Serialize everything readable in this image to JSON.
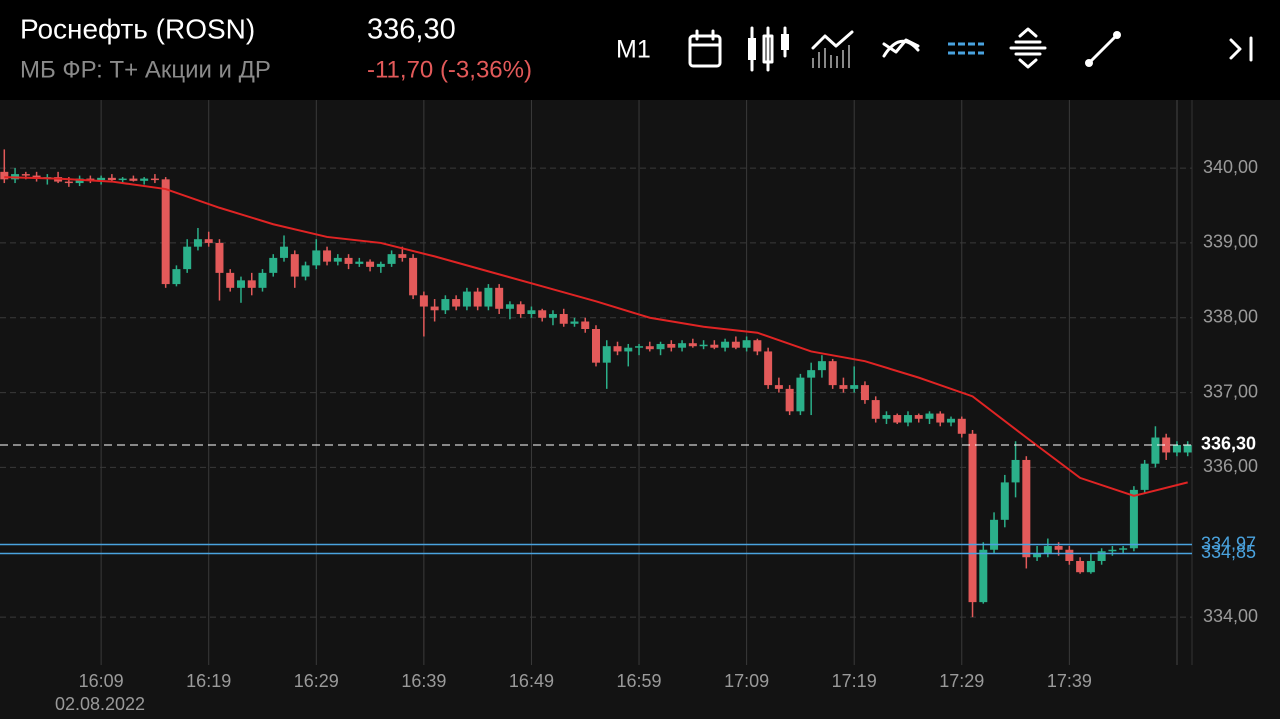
{
  "header": {
    "title": "Роснефть (ROSN)",
    "subtitle": "МБ ФР: Т+ Акции и ДР",
    "price": "336,30",
    "change": "-11,70 (-3,36%)",
    "timeframe": "M1"
  },
  "chart_data": {
    "type": "candlestick",
    "date_label": "02.08.2022",
    "up_color": "#2bb08a",
    "down_color": "#e35a5a",
    "xlim": [
      959.6,
      1070.4
    ],
    "ylim": [
      333.36,
      340.91
    ],
    "xticks": [
      {
        "value": 969,
        "label": "16:09"
      },
      {
        "value": 979,
        "label": "16:19"
      },
      {
        "value": 989,
        "label": "16:29"
      },
      {
        "value": 999,
        "label": "16:39"
      },
      {
        "value": 1009,
        "label": "16:49"
      },
      {
        "value": 1019,
        "label": "16:59"
      },
      {
        "value": 1029,
        "label": "17:09"
      },
      {
        "value": 1039,
        "label": "17:19"
      },
      {
        "value": 1049,
        "label": "17:29"
      },
      {
        "value": 1059,
        "label": "17:39"
      }
    ],
    "yticks": [
      {
        "value": 334,
        "label": "334,00"
      },
      {
        "value": 336,
        "label": "336,00"
      },
      {
        "value": 337,
        "label": "337,00"
      },
      {
        "value": 338,
        "label": "338,00"
      },
      {
        "value": 339,
        "label": "339,00"
      },
      {
        "value": 340,
        "label": "340,00"
      }
    ],
    "grid": true,
    "x": [
      960,
      961,
      962,
      963,
      964,
      965,
      966,
      967,
      968,
      969,
      970,
      971,
      972,
      973,
      974,
      975,
      976,
      977,
      978,
      979,
      980,
      981,
      982,
      983,
      984,
      985,
      986,
      987,
      988,
      989,
      990,
      991,
      992,
      993,
      994,
      995,
      996,
      997,
      998,
      999,
      1000,
      1001,
      1002,
      1003,
      1004,
      1005,
      1006,
      1007,
      1008,
      1009,
      1010,
      1011,
      1012,
      1013,
      1014,
      1015,
      1016,
      1017,
      1018,
      1019,
      1020,
      1021,
      1022,
      1023,
      1024,
      1025,
      1026,
      1027,
      1028,
      1029,
      1030,
      1031,
      1032,
      1033,
      1034,
      1035,
      1036,
      1037,
      1038,
      1039,
      1040,
      1041,
      1042,
      1043,
      1044,
      1045,
      1046,
      1047,
      1048,
      1049,
      1050,
      1051,
      1052,
      1053,
      1054,
      1055,
      1056,
      1057,
      1058,
      1059,
      1060,
      1061,
      1062,
      1063,
      1064,
      1065,
      1066,
      1067,
      1068,
      1069,
      1070
    ],
    "candles": [
      [
        339.95,
        340.25,
        339.8,
        339.85
      ],
      [
        339.85,
        340.0,
        339.8,
        339.92
      ],
      [
        339.92,
        339.95,
        339.85,
        339.9
      ],
      [
        339.9,
        339.95,
        339.82,
        339.86
      ],
      [
        339.86,
        339.92,
        339.78,
        339.88
      ],
      [
        339.88,
        339.95,
        339.8,
        339.82
      ],
      [
        339.82,
        339.88,
        339.75,
        339.8
      ],
      [
        339.8,
        339.9,
        339.76,
        339.86
      ],
      [
        339.86,
        339.9,
        339.8,
        339.84
      ],
      [
        339.84,
        339.9,
        339.78,
        339.87
      ],
      [
        339.87,
        339.92,
        339.82,
        339.84
      ],
      [
        339.84,
        339.88,
        339.8,
        339.86
      ],
      [
        339.86,
        339.9,
        339.82,
        339.83
      ],
      [
        339.83,
        339.88,
        339.78,
        339.86
      ],
      [
        339.86,
        339.92,
        339.8,
        339.85
      ],
      [
        339.85,
        339.88,
        338.4,
        338.45
      ],
      [
        338.45,
        338.7,
        338.42,
        338.65
      ],
      [
        338.65,
        339.05,
        338.6,
        338.95
      ],
      [
        338.95,
        339.2,
        338.9,
        339.05
      ],
      [
        339.05,
        339.15,
        338.95,
        339.0
      ],
      [
        339.0,
        339.05,
        338.23,
        338.6
      ],
      [
        338.6,
        338.65,
        338.35,
        338.4
      ],
      [
        338.4,
        338.55,
        338.2,
        338.5
      ],
      [
        338.5,
        338.6,
        338.3,
        338.4
      ],
      [
        338.4,
        338.65,
        338.35,
        338.6
      ],
      [
        338.6,
        338.85,
        338.55,
        338.8
      ],
      [
        338.8,
        339.1,
        338.75,
        338.95
      ],
      [
        338.85,
        338.9,
        338.4,
        338.55
      ],
      [
        338.55,
        338.75,
        338.5,
        338.7
      ],
      [
        338.7,
        339.05,
        338.65,
        338.9
      ],
      [
        338.9,
        338.95,
        338.7,
        338.75
      ],
      [
        338.75,
        338.85,
        338.7,
        338.8
      ],
      [
        338.8,
        338.85,
        338.65,
        338.72
      ],
      [
        338.72,
        338.8,
        338.68,
        338.75
      ],
      [
        338.75,
        338.78,
        338.62,
        338.68
      ],
      [
        338.68,
        338.75,
        338.6,
        338.72
      ],
      [
        338.72,
        338.9,
        338.68,
        338.85
      ],
      [
        338.85,
        338.95,
        338.75,
        338.8
      ],
      [
        338.8,
        338.85,
        338.25,
        338.3
      ],
      [
        338.3,
        338.35,
        337.75,
        338.15
      ],
      [
        338.15,
        338.25,
        337.95,
        338.1
      ],
      [
        338.1,
        338.3,
        338.05,
        338.25
      ],
      [
        338.25,
        338.3,
        338.1,
        338.15
      ],
      [
        338.15,
        338.4,
        338.1,
        338.35
      ],
      [
        338.35,
        338.4,
        338.1,
        338.15
      ],
      [
        338.15,
        338.45,
        338.1,
        338.4
      ],
      [
        338.4,
        338.45,
        338.05,
        338.12
      ],
      [
        338.12,
        338.22,
        337.98,
        338.18
      ],
      [
        338.18,
        338.22,
        338.0,
        338.05
      ],
      [
        338.05,
        338.15,
        338.0,
        338.1
      ],
      [
        338.1,
        338.12,
        337.95,
        338.0
      ],
      [
        338.0,
        338.1,
        337.9,
        338.05
      ],
      [
        338.05,
        338.12,
        337.88,
        337.92
      ],
      [
        337.92,
        338.0,
        337.88,
        337.95
      ],
      [
        337.95,
        338.0,
        337.8,
        337.85
      ],
      [
        337.85,
        337.9,
        337.35,
        337.4
      ],
      [
        337.4,
        337.7,
        337.05,
        337.62
      ],
      [
        337.62,
        337.68,
        337.5,
        337.55
      ],
      [
        337.55,
        337.65,
        337.35,
        337.6
      ],
      [
        337.6,
        337.65,
        337.5,
        337.62
      ],
      [
        337.62,
        337.68,
        337.55,
        337.58
      ],
      [
        337.58,
        337.68,
        337.5,
        337.65
      ],
      [
        337.65,
        337.7,
        337.55,
        337.6
      ],
      [
        337.6,
        337.7,
        337.55,
        337.66
      ],
      [
        337.66,
        337.72,
        337.6,
        337.62
      ],
      [
        337.62,
        337.7,
        337.58,
        337.64
      ],
      [
        337.64,
        337.7,
        337.58,
        337.6
      ],
      [
        337.6,
        337.72,
        337.55,
        337.68
      ],
      [
        337.68,
        337.75,
        337.58,
        337.6
      ],
      [
        337.6,
        337.75,
        337.55,
        337.7
      ],
      [
        337.7,
        337.72,
        337.5,
        337.55
      ],
      [
        337.55,
        337.6,
        337.05,
        337.1
      ],
      [
        337.1,
        337.2,
        337.0,
        337.05
      ],
      [
        337.05,
        337.1,
        336.7,
        336.75
      ],
      [
        336.75,
        337.25,
        336.7,
        337.2
      ],
      [
        337.2,
        337.4,
        336.7,
        337.3
      ],
      [
        337.3,
        337.5,
        337.2,
        337.42
      ],
      [
        337.42,
        337.45,
        337.05,
        337.1
      ],
      [
        337.1,
        337.2,
        337.0,
        337.05
      ],
      [
        337.05,
        337.35,
        337.0,
        337.1
      ],
      [
        337.1,
        337.15,
        336.85,
        336.9
      ],
      [
        336.9,
        336.95,
        336.6,
        336.65
      ],
      [
        336.65,
        336.75,
        336.58,
        336.7
      ],
      [
        336.7,
        336.72,
        336.58,
        336.6
      ],
      [
        336.6,
        336.75,
        336.55,
        336.7
      ],
      [
        336.7,
        336.72,
        336.6,
        336.65
      ],
      [
        336.65,
        336.75,
        336.58,
        336.72
      ],
      [
        336.72,
        336.75,
        336.55,
        336.6
      ],
      [
        336.6,
        336.68,
        336.55,
        336.65
      ],
      [
        336.65,
        336.68,
        336.4,
        336.45
      ],
      [
        336.45,
        336.5,
        334.0,
        334.2
      ],
      [
        334.2,
        335.0,
        334.18,
        334.9
      ],
      [
        334.9,
        335.4,
        334.85,
        335.3
      ],
      [
        335.3,
        335.9,
        335.2,
        335.8
      ],
      [
        335.8,
        336.35,
        335.6,
        336.1
      ],
      [
        336.1,
        336.15,
        334.65,
        334.8
      ],
      [
        334.8,
        334.95,
        334.75,
        334.85
      ],
      [
        334.85,
        335.05,
        334.8,
        334.95
      ],
      [
        334.95,
        335.0,
        334.82,
        334.9
      ],
      [
        334.9,
        334.95,
        334.7,
        334.75
      ],
      [
        334.75,
        334.8,
        334.58,
        334.6
      ],
      [
        334.6,
        334.85,
        334.58,
        334.75
      ],
      [
        334.75,
        334.92,
        334.7,
        334.88
      ],
      [
        334.88,
        334.95,
        334.82,
        334.9
      ],
      [
        334.9,
        334.95,
        334.85,
        334.92
      ],
      [
        334.92,
        335.75,
        334.88,
        335.7
      ],
      [
        335.7,
        336.1,
        335.65,
        336.05
      ],
      [
        336.05,
        336.55,
        336.0,
        336.4
      ],
      [
        336.4,
        336.45,
        336.1,
        336.2
      ],
      [
        336.2,
        336.35,
        336.15,
        336.3
      ],
      [
        336.2,
        336.35,
        336.15,
        336.3
      ]
    ],
    "ma": {
      "color": "#e02424",
      "x": [
        960,
        965,
        970,
        975,
        980,
        985,
        990,
        995,
        1000,
        1005,
        1010,
        1015,
        1020,
        1025,
        1030,
        1035,
        1040,
        1045,
        1050,
        1055,
        1060,
        1065,
        1070
      ],
      "values": [
        339.88,
        339.86,
        339.82,
        339.72,
        339.47,
        339.25,
        339.08,
        339.0,
        338.82,
        338.62,
        338.42,
        338.22,
        338.0,
        337.88,
        337.8,
        337.55,
        337.42,
        337.2,
        336.95,
        336.4,
        335.86,
        335.62,
        335.8
      ]
    },
    "hlines": [
      {
        "value": 336.3,
        "label": "336,30",
        "color": "#ffffff",
        "dashed": true
      },
      {
        "value": 334.97,
        "label": "334,97",
        "color": "#4aa3df",
        "dashed": false
      },
      {
        "value": 334.85,
        "label": "334,85",
        "color": "#4aa3df",
        "dashed": false
      }
    ]
  }
}
